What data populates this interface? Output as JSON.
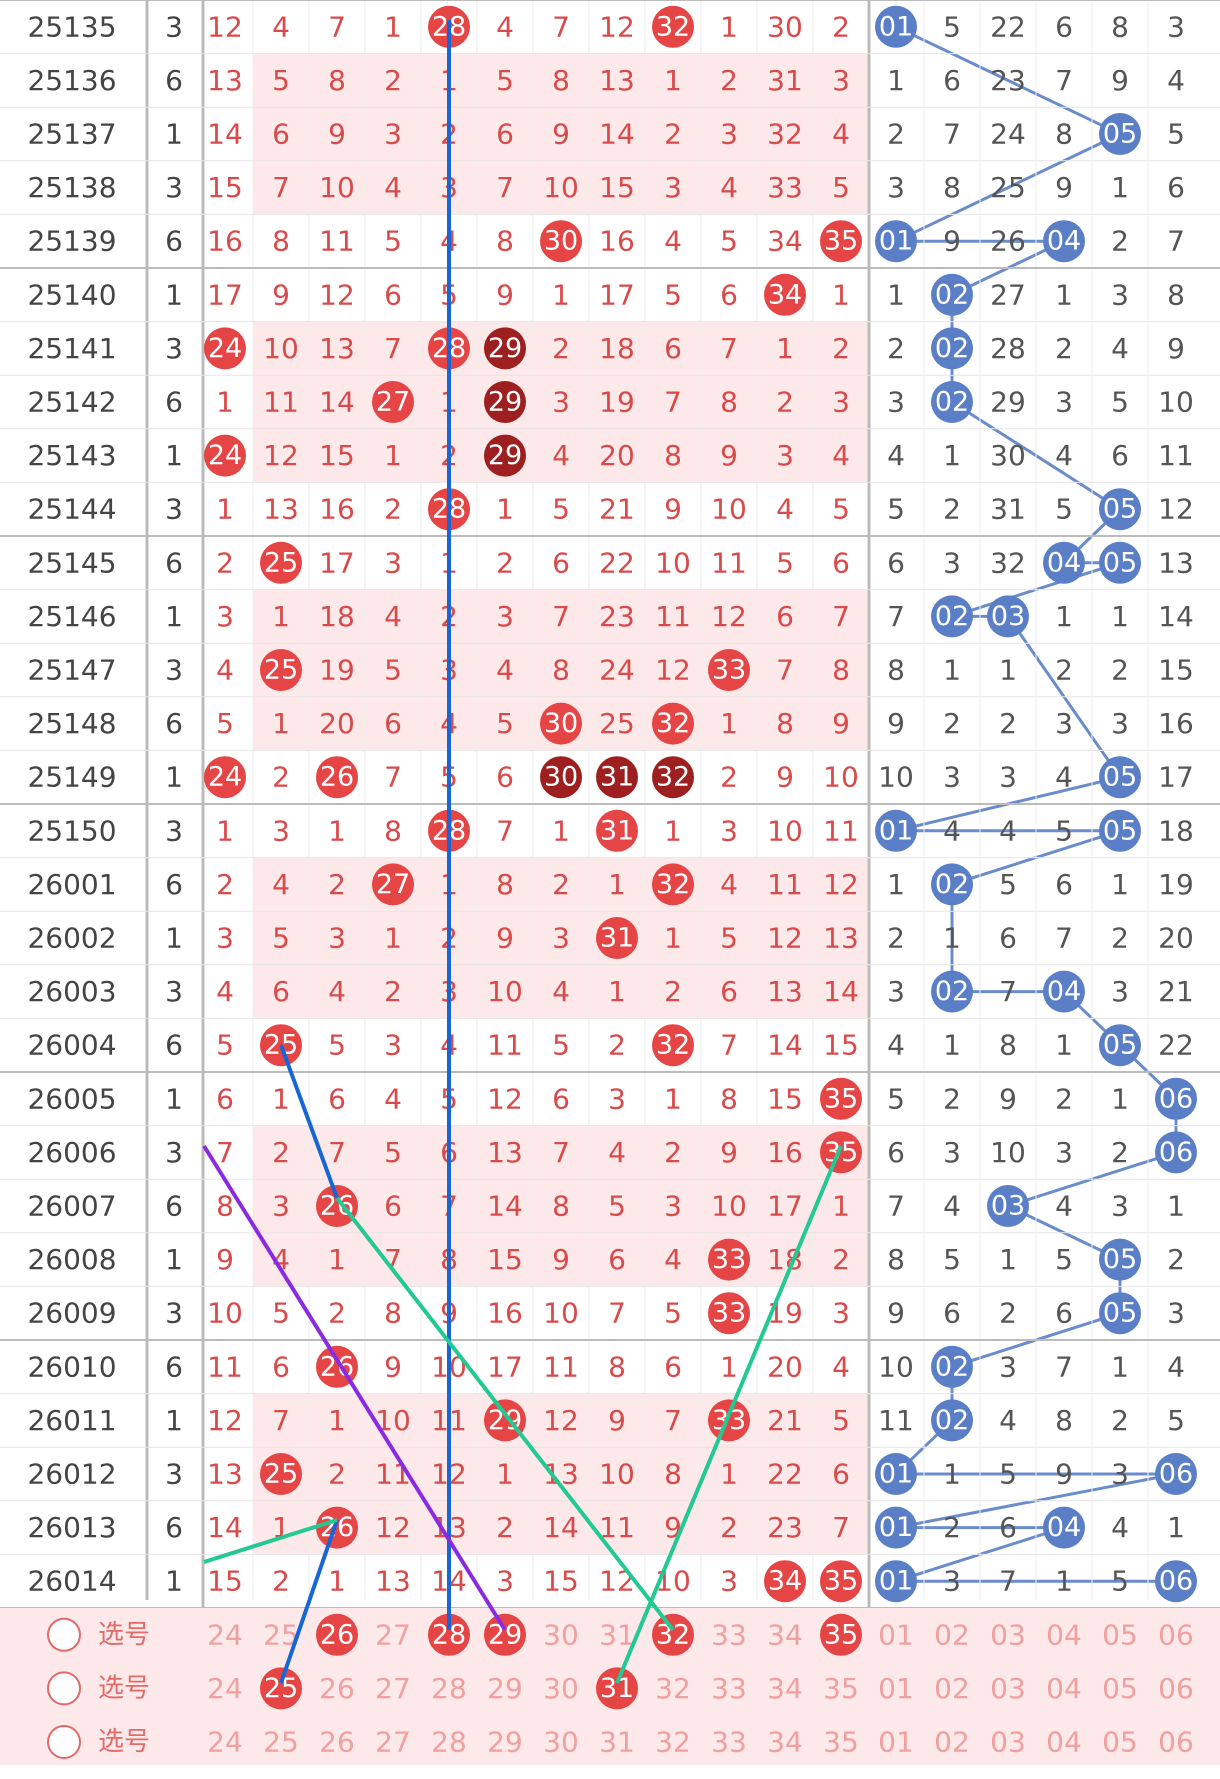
{
  "table": {
    "rows": [
      {
        "issue": "25135",
        "tail": "3",
        "blue": [
          "01",
          "5",
          "22",
          "6",
          "8",
          "3"
        ],
        "red": [
          "12",
          "4",
          "7",
          "1",
          "28",
          "4",
          "7",
          "12",
          "32",
          "1",
          "30",
          "2"
        ],
        "hitRed": [
          4,
          8
        ],
        "hitBlue": [
          0
        ]
      },
      {
        "issue": "25136",
        "tail": "6",
        "blue": [
          "1",
          "6",
          "23",
          "7",
          "9",
          "4"
        ],
        "red": [
          "13",
          "5",
          "8",
          "2",
          "1",
          "5",
          "8",
          "13",
          "1",
          "2",
          "31",
          "3"
        ],
        "hitRed": [],
        "hitBlue": []
      },
      {
        "issue": "25137",
        "tail": "1",
        "blue": [
          "2",
          "7",
          "24",
          "8",
          "05",
          "5"
        ],
        "red": [
          "14",
          "6",
          "9",
          "3",
          "2",
          "6",
          "9",
          "14",
          "2",
          "3",
          "32",
          "4"
        ],
        "hitRed": [],
        "hitBlue": [
          4
        ]
      },
      {
        "issue": "25138",
        "tail": "3",
        "blue": [
          "3",
          "8",
          "25",
          "9",
          "1",
          "6"
        ],
        "red": [
          "15",
          "7",
          "10",
          "4",
          "3",
          "7",
          "10",
          "15",
          "3",
          "4",
          "33",
          "5"
        ],
        "hitRed": [],
        "hitBlue": []
      },
      {
        "issue": "25139",
        "tail": "6",
        "blue": [
          "01",
          "9",
          "26",
          "04",
          "2",
          "7"
        ],
        "red": [
          "16",
          "8",
          "11",
          "5",
          "4",
          "8",
          "30",
          "16",
          "4",
          "5",
          "34",
          "35"
        ],
        "hitRed": [
          6,
          11
        ],
        "hitBlue": [
          0,
          3
        ]
      },
      {
        "issue": "25140",
        "tail": "1",
        "blue": [
          "1",
          "02",
          "27",
          "1",
          "3",
          "8"
        ],
        "red": [
          "17",
          "9",
          "12",
          "6",
          "5",
          "9",
          "1",
          "17",
          "5",
          "6",
          "34",
          "1"
        ],
        "hitRed": [
          10
        ],
        "hitBlue": [
          1
        ]
      },
      {
        "issue": "25141",
        "tail": "3",
        "blue": [
          "2",
          "02",
          "28",
          "2",
          "4",
          "9"
        ],
        "red": [
          "24",
          "10",
          "13",
          "7",
          "28",
          "29",
          "2",
          "18",
          "6",
          "7",
          "1",
          "2"
        ],
        "hitRed": [
          0,
          4
        ],
        "darkRed": [
          5
        ],
        "hitBlue": [
          1
        ]
      },
      {
        "issue": "25142",
        "tail": "6",
        "blue": [
          "3",
          "02",
          "29",
          "3",
          "5",
          "10"
        ],
        "red": [
          "1",
          "11",
          "14",
          "27",
          "1",
          "29",
          "3",
          "19",
          "7",
          "8",
          "2",
          "3"
        ],
        "hitRed": [
          3
        ],
        "darkRed": [
          5
        ],
        "hitBlue": [
          1
        ]
      },
      {
        "issue": "25143",
        "tail": "1",
        "blue": [
          "4",
          "1",
          "30",
          "4",
          "6",
          "11"
        ],
        "red": [
          "24",
          "12",
          "15",
          "1",
          "2",
          "29",
          "4",
          "20",
          "8",
          "9",
          "3",
          "4"
        ],
        "hitRed": [
          0
        ],
        "darkRed": [
          5
        ],
        "hitBlue": []
      },
      {
        "issue": "25144",
        "tail": "3",
        "blue": [
          "5",
          "2",
          "31",
          "5",
          "05",
          "12"
        ],
        "red": [
          "1",
          "13",
          "16",
          "2",
          "28",
          "1",
          "5",
          "21",
          "9",
          "10",
          "4",
          "5"
        ],
        "hitRed": [
          4
        ],
        "hitBlue": [
          4
        ]
      },
      {
        "issue": "25145",
        "tail": "6",
        "blue": [
          "6",
          "3",
          "32",
          "04",
          "05",
          "13"
        ],
        "red": [
          "2",
          "25",
          "17",
          "3",
          "1",
          "2",
          "6",
          "22",
          "10",
          "11",
          "5",
          "6"
        ],
        "hitRed": [
          1
        ],
        "hitBlue": [
          3,
          4
        ]
      },
      {
        "issue": "25146",
        "tail": "1",
        "blue": [
          "7",
          "02",
          "03",
          "1",
          "1",
          "14"
        ],
        "red": [
          "3",
          "1",
          "18",
          "4",
          "2",
          "3",
          "7",
          "23",
          "11",
          "12",
          "6",
          "7"
        ],
        "hitRed": [],
        "hitBlue": [
          1,
          2
        ]
      },
      {
        "issue": "25147",
        "tail": "3",
        "blue": [
          "8",
          "1",
          "1",
          "2",
          "2",
          "15"
        ],
        "red": [
          "4",
          "25",
          "19",
          "5",
          "3",
          "4",
          "8",
          "24",
          "12",
          "33",
          "7",
          "8"
        ],
        "hitRed": [
          1,
          9
        ],
        "hitBlue": []
      },
      {
        "issue": "25148",
        "tail": "6",
        "blue": [
          "9",
          "2",
          "2",
          "3",
          "3",
          "16"
        ],
        "red": [
          "5",
          "1",
          "20",
          "6",
          "4",
          "5",
          "30",
          "25",
          "32",
          "1",
          "8",
          "9"
        ],
        "hitRed": [
          6,
          8
        ],
        "hitBlue": []
      },
      {
        "issue": "25149",
        "tail": "1",
        "blue": [
          "10",
          "3",
          "3",
          "4",
          "05",
          "17"
        ],
        "red": [
          "24",
          "2",
          "26",
          "7",
          "5",
          "6",
          "30",
          "31",
          "32",
          "2",
          "9",
          "10"
        ],
        "hitRed": [
          0,
          2
        ],
        "darkRed": [
          6,
          7,
          8
        ],
        "hitBlue": [
          4
        ]
      },
      {
        "issue": "25150",
        "tail": "3",
        "blue": [
          "01",
          "4",
          "4",
          "5",
          "05",
          "18"
        ],
        "red": [
          "1",
          "3",
          "1",
          "8",
          "28",
          "7",
          "1",
          "31",
          "1",
          "3",
          "10",
          "11"
        ],
        "hitRed": [
          4,
          7
        ],
        "hitBlue": [
          0,
          4
        ]
      },
      {
        "issue": "26001",
        "tail": "6",
        "blue": [
          "1",
          "02",
          "5",
          "6",
          "1",
          "19"
        ],
        "red": [
          "2",
          "4",
          "2",
          "27",
          "1",
          "8",
          "2",
          "1",
          "32",
          "4",
          "11",
          "12"
        ],
        "hitRed": [
          3,
          8
        ],
        "hitBlue": [
          1
        ]
      },
      {
        "issue": "26002",
        "tail": "1",
        "blue": [
          "2",
          "1",
          "6",
          "7",
          "2",
          "20"
        ],
        "red": [
          "3",
          "5",
          "3",
          "1",
          "2",
          "9",
          "3",
          "31",
          "1",
          "5",
          "12",
          "13"
        ],
        "hitRed": [
          7
        ],
        "hitBlue": []
      },
      {
        "issue": "26003",
        "tail": "3",
        "blue": [
          "3",
          "02",
          "7",
          "04",
          "3",
          "21"
        ],
        "red": [
          "4",
          "6",
          "4",
          "2",
          "3",
          "10",
          "4",
          "1",
          "2",
          "6",
          "13",
          "14"
        ],
        "hitRed": [],
        "hitBlue": [
          1,
          3
        ]
      },
      {
        "issue": "26004",
        "tail": "6",
        "blue": [
          "4",
          "1",
          "8",
          "1",
          "05",
          "22"
        ],
        "red": [
          "5",
          "25",
          "5",
          "3",
          "4",
          "11",
          "5",
          "2",
          "32",
          "7",
          "14",
          "15"
        ],
        "hitRed": [
          1,
          8
        ],
        "hitBlue": [
          4
        ]
      },
      {
        "issue": "26005",
        "tail": "1",
        "blue": [
          "5",
          "2",
          "9",
          "2",
          "1",
          "06"
        ],
        "red": [
          "6",
          "1",
          "6",
          "4",
          "5",
          "12",
          "6",
          "3",
          "1",
          "8",
          "15",
          "35"
        ],
        "hitRed": [
          11
        ],
        "hitBlue": [
          5
        ]
      },
      {
        "issue": "26006",
        "tail": "3",
        "blue": [
          "6",
          "3",
          "10",
          "3",
          "2",
          "06"
        ],
        "red": [
          "7",
          "2",
          "7",
          "5",
          "6",
          "13",
          "7",
          "4",
          "2",
          "9",
          "16",
          "35"
        ],
        "hitRed": [
          11
        ],
        "hitBlue": [
          5
        ]
      },
      {
        "issue": "26007",
        "tail": "6",
        "blue": [
          "7",
          "4",
          "03",
          "4",
          "3",
          "1"
        ],
        "red": [
          "8",
          "3",
          "26",
          "6",
          "7",
          "14",
          "8",
          "5",
          "3",
          "10",
          "17",
          "1"
        ],
        "hitRed": [
          2
        ],
        "hitBlue": [
          2
        ]
      },
      {
        "issue": "26008",
        "tail": "1",
        "blue": [
          "8",
          "5",
          "1",
          "5",
          "05",
          "2"
        ],
        "red": [
          "9",
          "4",
          "1",
          "7",
          "8",
          "15",
          "9",
          "6",
          "4",
          "33",
          "18",
          "2"
        ],
        "hitRed": [
          9
        ],
        "hitBlue": [
          4
        ]
      },
      {
        "issue": "26009",
        "tail": "3",
        "blue": [
          "9",
          "6",
          "2",
          "6",
          "05",
          "3"
        ],
        "red": [
          "10",
          "5",
          "2",
          "8",
          "9",
          "16",
          "10",
          "7",
          "5",
          "33",
          "19",
          "3"
        ],
        "hitRed": [
          9
        ],
        "hitBlue": [
          4
        ]
      },
      {
        "issue": "26010",
        "tail": "6",
        "blue": [
          "10",
          "02",
          "3",
          "7",
          "1",
          "4"
        ],
        "red": [
          "11",
          "6",
          "26",
          "9",
          "10",
          "17",
          "11",
          "8",
          "6",
          "1",
          "20",
          "4"
        ],
        "hitRed": [
          2
        ],
        "hitBlue": [
          1
        ]
      },
      {
        "issue": "26011",
        "tail": "1",
        "blue": [
          "11",
          "02",
          "4",
          "8",
          "2",
          "5"
        ],
        "red": [
          "12",
          "7",
          "1",
          "10",
          "11",
          "29",
          "12",
          "9",
          "7",
          "33",
          "21",
          "5"
        ],
        "hitRed": [
          5,
          9
        ],
        "hitBlue": [
          1
        ]
      },
      {
        "issue": "26012",
        "tail": "3",
        "blue": [
          "01",
          "1",
          "5",
          "9",
          "3",
          "06"
        ],
        "red": [
          "13",
          "25",
          "2",
          "11",
          "12",
          "1",
          "13",
          "10",
          "8",
          "1",
          "22",
          "6"
        ],
        "hitRed": [
          1
        ],
        "hitBlue": [
          0,
          5
        ]
      },
      {
        "issue": "26013",
        "tail": "6",
        "blue": [
          "01",
          "2",
          "6",
          "04",
          "4",
          "1"
        ],
        "red": [
          "14",
          "1",
          "26",
          "12",
          "13",
          "2",
          "14",
          "11",
          "9",
          "2",
          "23",
          "7"
        ],
        "hitRed": [
          2
        ],
        "hitBlue": [
          0,
          3
        ]
      },
      {
        "issue": "26014",
        "tail": "1",
        "blue": [
          "01",
          "3",
          "7",
          "1",
          "5",
          "06"
        ],
        "red": [
          "15",
          "2",
          "1",
          "13",
          "14",
          "3",
          "15",
          "12",
          "10",
          "3",
          "34",
          "35"
        ],
        "hitRed": [
          10,
          11
        ],
        "hitBlue": [
          0,
          5
        ]
      }
    ],
    "footer": {
      "label": "选号",
      "rows": [
        {
          "red": [
            "24",
            "25",
            "26",
            "27",
            "28",
            "29",
            "30",
            "31",
            "32",
            "33",
            "34",
            "35"
          ],
          "blue": [
            "01",
            "02",
            "03",
            "04",
            "05",
            "06"
          ],
          "selRed": [
            2,
            4,
            5,
            8,
            11
          ]
        },
        {
          "red": [
            "24",
            "25",
            "26",
            "27",
            "28",
            "29",
            "30",
            "31",
            "32",
            "33",
            "34",
            "35"
          ],
          "blue": [
            "01",
            "02",
            "03",
            "04",
            "05",
            "06"
          ],
          "selRed": [
            1,
            7
          ]
        },
        {
          "red": [
            "24",
            "25",
            "26",
            "27",
            "28",
            "29",
            "30",
            "31",
            "32",
            "33",
            "34",
            "35"
          ],
          "blue": [
            "01",
            "02",
            "03",
            "04",
            "05",
            "06"
          ],
          "selRed": []
        }
      ]
    }
  },
  "colors": {
    "red": "#e64545",
    "darkRed": "#9e1f1f",
    "blue": "#5b7fc7",
    "redText": "#d94a4a",
    "blueText": "#555555",
    "pinkBand": "#fde9e9"
  }
}
